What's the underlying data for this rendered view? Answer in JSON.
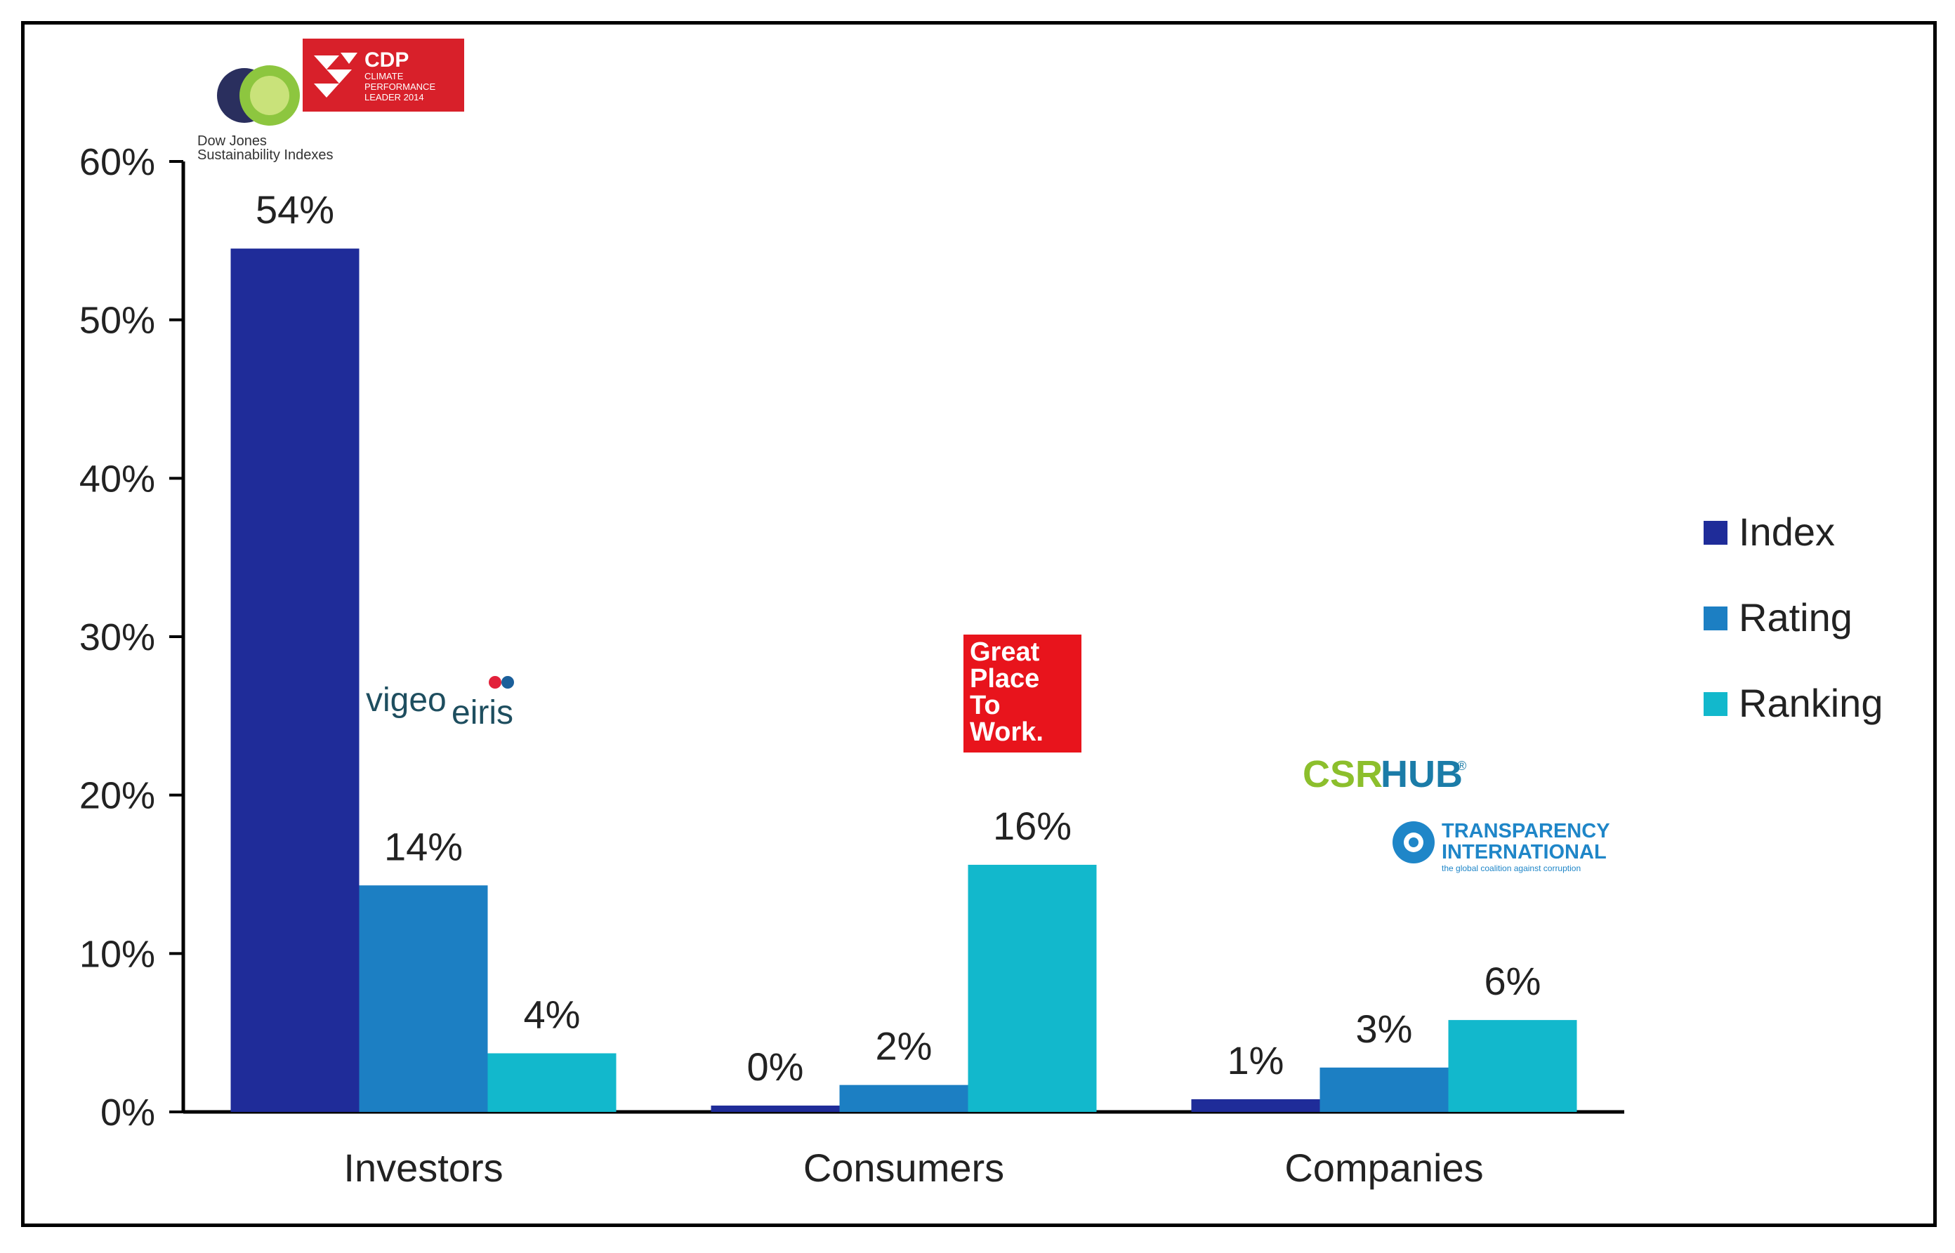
{
  "chart_data": {
    "type": "bar",
    "categories": [
      "Investors",
      "Consumers",
      "Companies"
    ],
    "series": [
      {
        "name": "Index",
        "values": [
          54.5,
          0.4,
          0.8
        ],
        "labels": [
          "54%",
          "0%",
          "1%"
        ],
        "color": "#1f2c99"
      },
      {
        "name": "Rating",
        "values": [
          14.3,
          1.7,
          2.8
        ],
        "labels": [
          "14%",
          "2%",
          "3%"
        ],
        "color": "#1c7fc3"
      },
      {
        "name": "Ranking",
        "values": [
          3.7,
          15.6,
          5.8
        ],
        "labels": [
          "4%",
          "16%",
          "6%"
        ],
        "color": "#12b8cc"
      }
    ],
    "ylim": [
      0,
      60
    ],
    "yticks": [
      0,
      10,
      20,
      30,
      40,
      50,
      60
    ],
    "ytick_labels": [
      "0%",
      "10%",
      "20%",
      "30%",
      "40%",
      "50%",
      "60%"
    ],
    "grid": false,
    "legend_position": "right"
  },
  "logos": {
    "djsi": {
      "text1": "Dow Jones",
      "text2": "Sustainability Indexes"
    },
    "cdp": {
      "title": "CDP",
      "line1": "CLIMATE",
      "line2": "PERFORMANCE",
      "line3": "LEADER 2014"
    },
    "vigeo": {
      "part1": "vigeo",
      "part2": "eiris"
    },
    "gptw": {
      "line1": "Great",
      "line2": "Place",
      "line3": "To",
      "line4": "Work."
    },
    "csrhub": {
      "part1": "CSR",
      "part2": "HUB"
    },
    "ti": {
      "line1": "TRANSPARENCY",
      "line2": "INTERNATIONAL",
      "tagline": "the global coalition against corruption"
    }
  },
  "colors": {
    "axis": "#000000",
    "text": "#222222",
    "cdp_red": "#d8202a",
    "gptw_red": "#e8141c",
    "csr_green": "#8cbf2c",
    "csr_blue": "#1b7ca8",
    "ti_blue": "#1f86c8"
  }
}
